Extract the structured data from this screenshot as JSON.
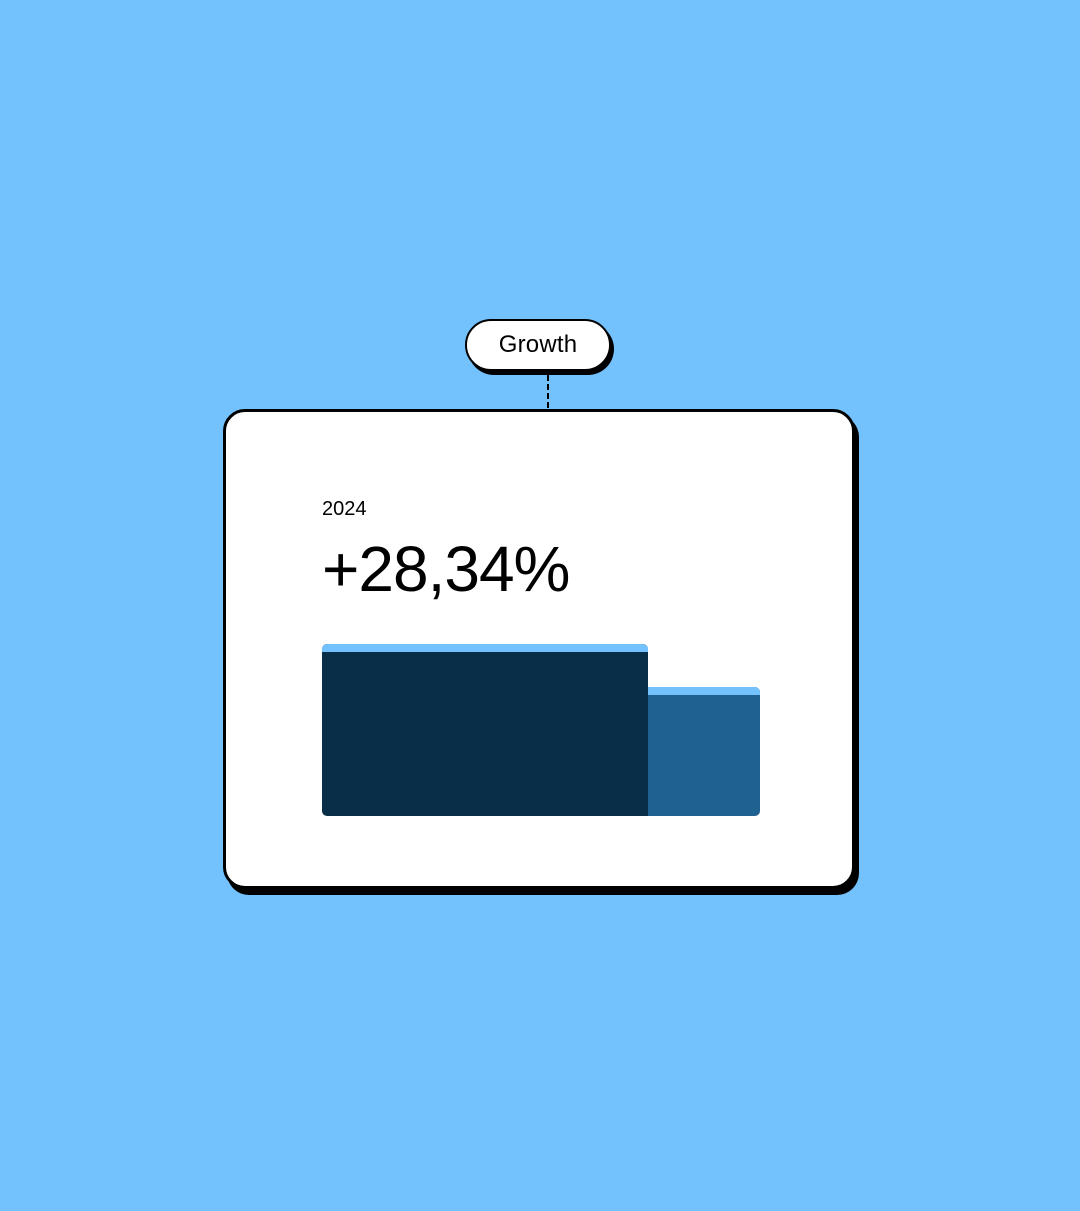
{
  "tag": {
    "label": "Growth"
  },
  "card": {
    "year": "2024",
    "value": "+28,34%"
  },
  "bars": [
    {
      "share": 0.745,
      "relative_height": 1.0,
      "color": "#082e48",
      "cap_color": "#74c2fd"
    },
    {
      "share": 0.255,
      "relative_height": 0.75,
      "color": "#1f6190",
      "cap_color": "#74c2fd"
    }
  ],
  "colors": {
    "background": "#74c2fd",
    "card": "#ffffff",
    "outline": "#000000"
  }
}
